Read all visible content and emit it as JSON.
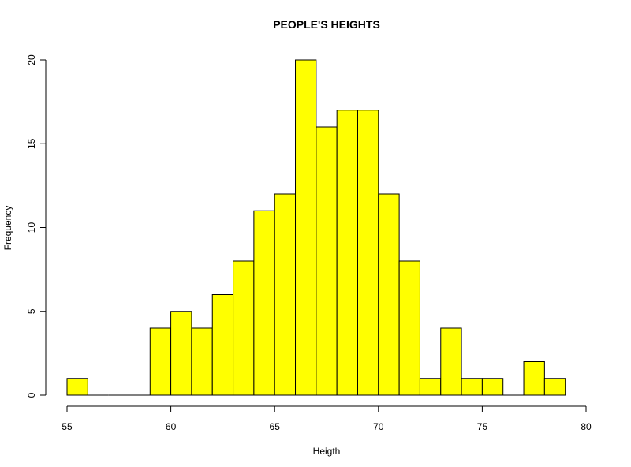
{
  "chart_data": {
    "type": "bar",
    "title": "PEOPLE'S HEIGHTS",
    "xlabel": "Heigth",
    "ylabel": "Frequency",
    "bar_color": "#ffff00",
    "border_color": "#000000",
    "bin_width": 1,
    "bins": [
      {
        "start": 55,
        "count": 1
      },
      {
        "start": 56,
        "count": 0
      },
      {
        "start": 57,
        "count": 0
      },
      {
        "start": 58,
        "count": 0
      },
      {
        "start": 59,
        "count": 4
      },
      {
        "start": 60,
        "count": 5
      },
      {
        "start": 61,
        "count": 4
      },
      {
        "start": 62,
        "count": 6
      },
      {
        "start": 63,
        "count": 8
      },
      {
        "start": 64,
        "count": 11
      },
      {
        "start": 65,
        "count": 12
      },
      {
        "start": 66,
        "count": 20
      },
      {
        "start": 67,
        "count": 16
      },
      {
        "start": 68,
        "count": 17
      },
      {
        "start": 69,
        "count": 17
      },
      {
        "start": 70,
        "count": 12
      },
      {
        "start": 71,
        "count": 8
      },
      {
        "start": 72,
        "count": 1
      },
      {
        "start": 73,
        "count": 4
      },
      {
        "start": 74,
        "count": 1
      },
      {
        "start": 75,
        "count": 1
      },
      {
        "start": 76,
        "count": 0
      },
      {
        "start": 77,
        "count": 2
      },
      {
        "start": 78,
        "count": 1
      }
    ],
    "xlim": [
      55,
      80
    ],
    "ylim": [
      0,
      20
    ],
    "xticks": [
      55,
      60,
      65,
      70,
      75,
      80
    ],
    "yticks": [
      0,
      5,
      10,
      15,
      20
    ],
    "grid": false
  }
}
